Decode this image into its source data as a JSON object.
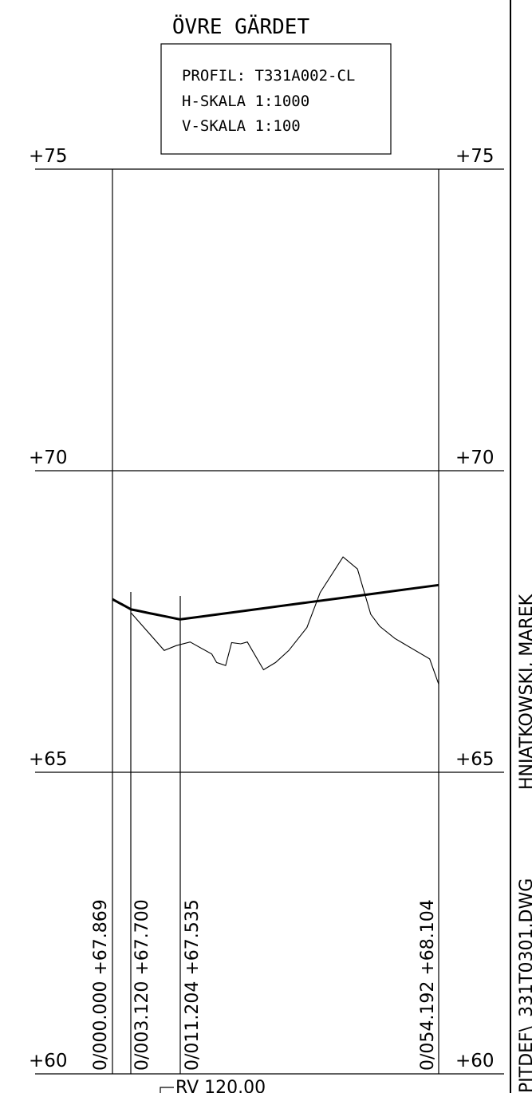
{
  "title": "ÖVRE GÄRDET",
  "info_box": {
    "profile": "PROFIL: T331A002-CL",
    "h_scale": "H-SKALA 1:1000",
    "v_scale": "V-SKALA 1:100"
  },
  "elevation_labels": {
    "l75": "+75",
    "r75": "+75",
    "l70": "+70",
    "r70": "+70",
    "l65": "+65",
    "r65": "+65",
    "l60": "+60",
    "r60": "+60"
  },
  "stations": {
    "s1": "0/000.000  +67.869",
    "s2": "0/003.120  +67.700",
    "s3": "0/011.204  +67.535",
    "s4": "0/054.192  +68.104"
  },
  "curve_label": "RV  120.00",
  "side_text": {
    "file": "PITDEF\\_331T0301.DWG",
    "author": "HNIATKOWSKI, MAREK"
  },
  "chart_data": {
    "type": "line",
    "ylim": [
      60,
      75
    ],
    "xlim": [
      0,
      54.192
    ],
    "series": [
      {
        "values": [
          [
            0,
            67.869
          ],
          [
            3.12,
            67.7
          ],
          [
            11.204,
            67.535
          ],
          [
            54.192,
            68.104
          ]
        ]
      },
      {
        "values": [
          [
            3.12,
            67.64
          ],
          [
            8.6,
            67.02
          ],
          [
            10.6,
            67.1
          ],
          [
            12.9,
            67.16
          ],
          [
            16.5,
            66.96
          ],
          [
            17.3,
            66.82
          ],
          [
            18.8,
            66.77
          ],
          [
            19.8,
            67.15
          ],
          [
            21.3,
            67.13
          ],
          [
            22.4,
            67.16
          ],
          [
            25.1,
            66.7
          ],
          [
            27.1,
            66.82
          ],
          [
            29.3,
            67.02
          ],
          [
            32.3,
            67.4
          ],
          [
            34.5,
            67.98
          ],
          [
            38.3,
            68.57
          ],
          [
            40.7,
            68.37
          ],
          [
            42.9,
            67.62
          ],
          [
            44.4,
            67.42
          ],
          [
            46.9,
            67.22
          ],
          [
            52.7,
            66.88
          ],
          [
            54.192,
            66.46
          ]
        ]
      }
    ]
  }
}
